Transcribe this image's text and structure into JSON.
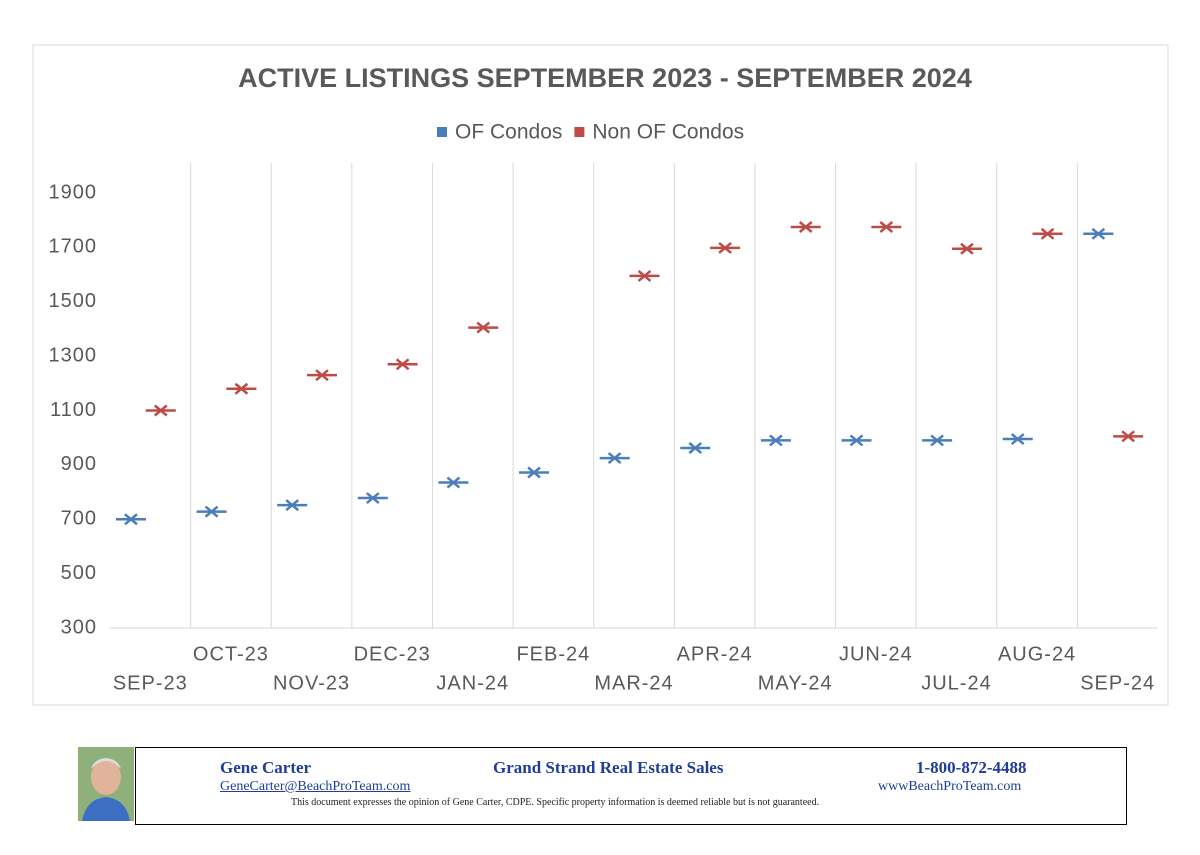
{
  "chart_data": {
    "type": "scatter",
    "title": "ACTIVE LISTINGS  SEPTEMBER 2023 - SEPTEMBER 2024",
    "categories": [
      "SEP-23",
      "OCT-23",
      "NOV-23",
      "DEC-23",
      "JAN-24",
      "FEB-24",
      "MAR-24",
      "APR-24",
      "MAY-24",
      "JUN-24",
      "JUL-24",
      "AUG-24",
      "SEP-24"
    ],
    "series": [
      {
        "name": "OF Condos",
        "color": "#4a7ebb",
        "values": [
          700,
          728,
          752,
          778,
          835,
          872,
          925,
          962,
          990,
          990,
          990,
          995,
          1750
        ]
      },
      {
        "name": "Non OF Condos",
        "color": "#be4b48",
        "values": [
          1100,
          1180,
          1230,
          1270,
          1405,
          null,
          1595,
          1698,
          1775,
          1775,
          1695,
          1750,
          1005
        ]
      }
    ],
    "ylim": [
      300,
      1900
    ],
    "yticks": [
      300,
      500,
      700,
      900,
      1100,
      1300,
      1500,
      1700,
      1900
    ],
    "legend": "top",
    "grid": "vertical"
  },
  "footer": {
    "name": "Gene Carter",
    "company": "Grand Strand Real Estate Sales",
    "phone": "1-800-872-4488",
    "email": "GeneCarter@BeachProTeam.com",
    "website": "wwwBeachProTeam.com",
    "disclaimer": "This document expresses the opinion of Gene Carter, CDPE.  Specific property information is deemed reliable but is not guaranteed."
  }
}
